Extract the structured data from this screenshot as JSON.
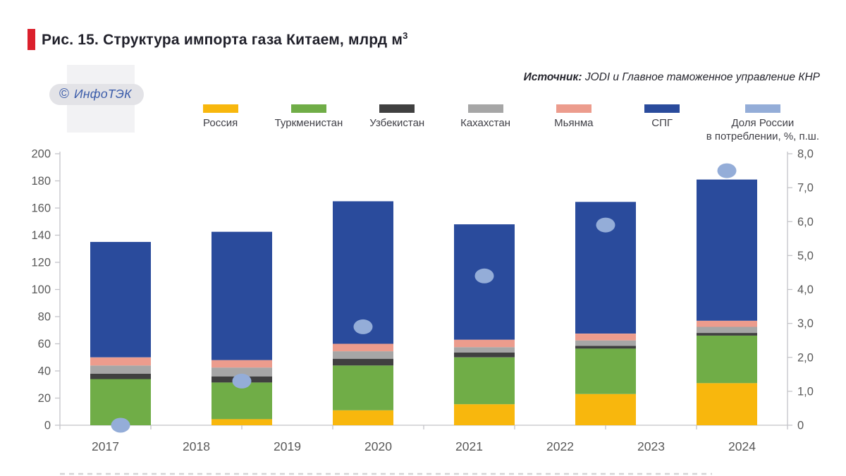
{
  "header": {
    "title_main": "Рис. 15. Структура импорта газа Китаем, млрд м",
    "title_sup": "3",
    "source_label": "Источник:",
    "source_text": " JODI и Главное таможенное управление КНР"
  },
  "logo": {
    "symbol": "©",
    "name": "ИнфоТЭК"
  },
  "colors": {
    "accent_red": "#DB202C",
    "title_text": "#21212B",
    "axis_line": "#C4C4C8",
    "tick_text": "#595959",
    "legend_text": "#3F3F46",
    "logo_blue": "#3A5BA9",
    "logo_pill_bg": "#E3E3E7",
    "logo_patch_bg": "#F2F2F4"
  },
  "chart_data": {
    "type": "bar",
    "subtype": "stacked-bars-with-scatter-overlay",
    "title": "Рис. 15. Структура импорта газа Китаем, млрд м3",
    "source": "Источник: JODI и Главное таможенное управление КНР",
    "x_axis_labels": [
      "2017",
      "2018",
      "2019",
      "2020",
      "2021",
      "2022",
      "2023",
      "2024"
    ],
    "layout_note": "6 stacked bars evenly distributed over plot width while x axis shows 8 year tick labels; bars visually fall near 2017, 2018, 2020, 2021, 2022, 2024",
    "grid": "off",
    "legend_position": "top",
    "left_axis": {
      "min": 0,
      "max": 200,
      "step": 20,
      "labels": [
        "0",
        "20",
        "40",
        "60",
        "80",
        "100",
        "120",
        "140",
        "160",
        "180",
        "200"
      ]
    },
    "right_axis": {
      "min": 0,
      "max": 8,
      "step": 1,
      "labels": [
        "0",
        "1,0",
        "2,0",
        "3,0",
        "4,0",
        "5,0",
        "6,0",
        "7,0",
        "8,0"
      ]
    },
    "series": [
      {
        "name": "Россия",
        "color": "#F8B70D",
        "values": [
          0,
          4.5,
          11,
          15.5,
          23,
          31
        ]
      },
      {
        "name": "Туркменистан",
        "color": "#70AD47",
        "values": [
          34,
          27,
          33,
          34.5,
          33.5,
          35
        ]
      },
      {
        "name": "Узбекистан",
        "color": "#404040",
        "values": [
          4,
          4.5,
          5,
          3.5,
          2,
          2
        ]
      },
      {
        "name": "Кахахстан",
        "color": "#A6A6A6",
        "values": [
          6,
          6.5,
          5.5,
          4,
          4,
          4.5
        ]
      },
      {
        "name": "Мьянма",
        "color": "#EC9C8D",
        "values": [
          6,
          5.5,
          5.5,
          5.5,
          5,
          4.5
        ]
      },
      {
        "name": "СПГ",
        "color": "#2A4B9C",
        "values": [
          85,
          94.5,
          105,
          85,
          97,
          104
        ]
      }
    ],
    "bar_totals": [
      135,
      142.5,
      165,
      148,
      164.5,
      181
    ],
    "dots": {
      "name": "Доля России в потреблении, %, п.ш.",
      "legend_lines": [
        "Доля России",
        "в потреблении, %, п.ш."
      ],
      "color": "#94ADD8",
      "axis": "right",
      "values": [
        0,
        1.3,
        2.9,
        4.4,
        5.9,
        7.5
      ]
    }
  }
}
